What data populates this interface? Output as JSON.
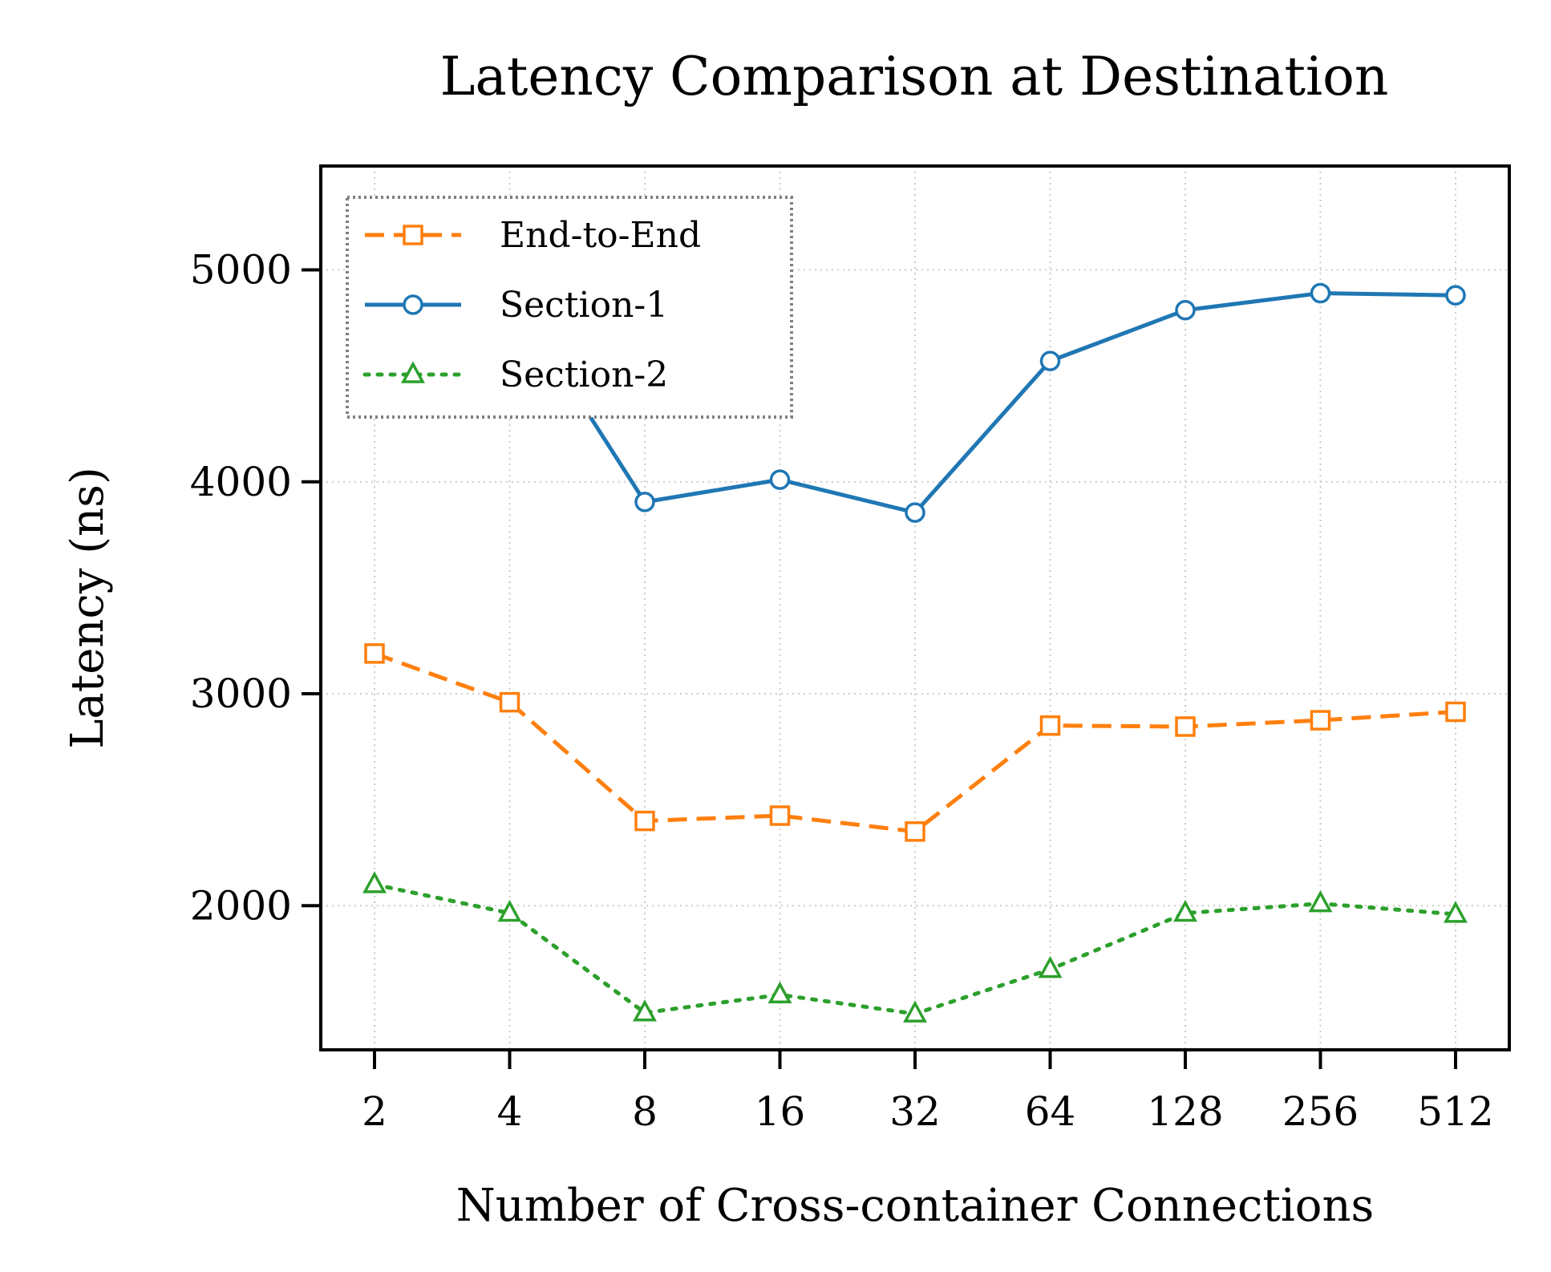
{
  "chart_data": {
    "type": "line",
    "title": "Latency Comparison at Destination",
    "xlabel": "Number of Cross-container Connections",
    "ylabel": "Latency (ns)",
    "categories": [
      "2",
      "4",
      "8",
      "16",
      "32",
      "64",
      "128",
      "256",
      "512"
    ],
    "yticks": [
      "2000",
      "3000",
      "4000",
      "5000"
    ],
    "ylim": [
      1320,
      5490
    ],
    "grid": true,
    "legend_position": "upper-left",
    "series": [
      {
        "name": "End-to-End",
        "color": "#ff7f0e",
        "marker": "square",
        "linestyle": "dashed",
        "values": [
          3190,
          2960,
          2400,
          2425,
          2350,
          2850,
          2845,
          2875,
          2915
        ]
      },
      {
        "name": "Section-1",
        "color": "#1f77b4",
        "marker": "circle",
        "linestyle": "solid",
        "values": [
          5200,
          4900,
          3905,
          4010,
          3855,
          4570,
          4810,
          4890,
          4880
        ]
      },
      {
        "name": "Section-2",
        "color": "#2ca02c",
        "marker": "triangle",
        "linestyle": "dotted",
        "values": [
          2100,
          1965,
          1495,
          1580,
          1490,
          1700,
          1965,
          2010,
          1960
        ]
      }
    ]
  }
}
